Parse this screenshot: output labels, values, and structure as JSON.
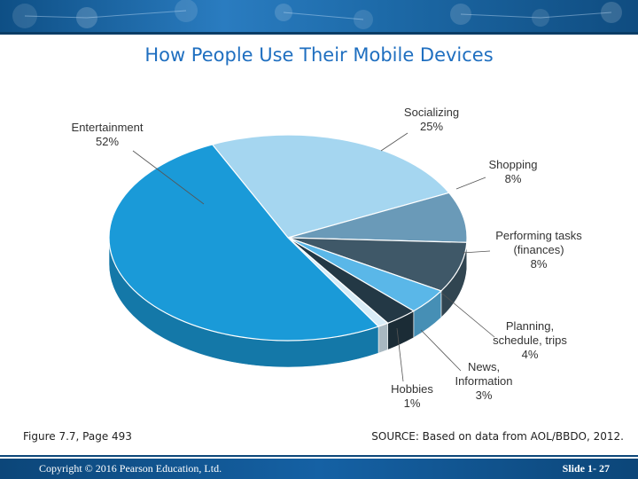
{
  "header": {
    "title": "How People Use Their Mobile Devices"
  },
  "chart_data": {
    "type": "pie",
    "title": "How People Use Their Mobile Devices",
    "slices": [
      {
        "label": "Entertainment",
        "percent_label": "52%",
        "value": 52,
        "color": "#1a9ad8"
      },
      {
        "label": "Socializing",
        "percent_label": "25%",
        "value": 25,
        "color": "#a5d6f0"
      },
      {
        "label": "Shopping",
        "percent_label": "8%",
        "value": 8,
        "color": "#6a9ab8"
      },
      {
        "label": "Performing tasks (finances)",
        "label_lines": [
          "Performing tasks",
          "(finances)"
        ],
        "percent_label": "8%",
        "value": 8,
        "color": "#3f5868"
      },
      {
        "label": "Planning, schedule, trips",
        "label_lines": [
          "Planning,",
          "schedule, trips"
        ],
        "percent_label": "4%",
        "value": 4,
        "color": "#5ab7e8"
      },
      {
        "label": "News, Information",
        "label_lines": [
          "News,",
          "Information"
        ],
        "percent_label": "3%",
        "value": 3,
        "color": "#233845"
      },
      {
        "label": "Hobbies",
        "percent_label": "1%",
        "value": 1,
        "color": "#d8ecf7"
      }
    ]
  },
  "captions": {
    "figure": "Figure 7.7, Page 493",
    "source": "SOURCE: Based on data from AOL/BBDO, 2012."
  },
  "footer": {
    "copyright": "Copyright © 2016 Pearson Education, Ltd.",
    "slide": "Slide 1- 27"
  }
}
